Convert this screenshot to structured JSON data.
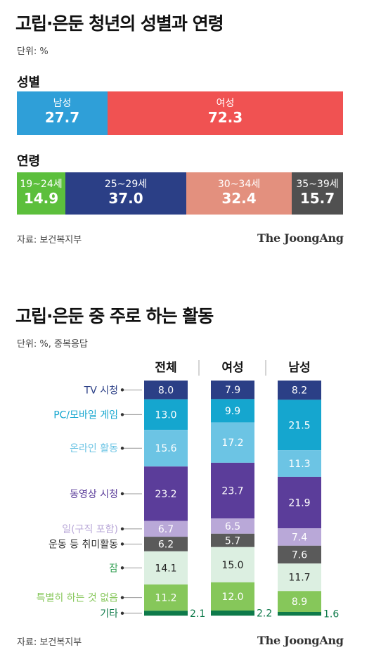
{
  "section1": {
    "title": "고립·은둔 청년의 성별과 연령",
    "unit": "단위: %",
    "gender_label": "성별",
    "age_label": "연령",
    "source": "자료: 보건복지부",
    "brand": "The JoongAng"
  },
  "section2": {
    "title": "고립·은둔 중 주로 하는 활동",
    "unit": "단위: %, 중복응답",
    "source": "자료: 보건복지부",
    "brand": "The JoongAng"
  },
  "colors": {
    "male": "#2f9fd8",
    "female": "#f05252",
    "age_19_24": "#5cbf3c",
    "age_25_29": "#2b3f86",
    "age_30_34": "#e3907e",
    "age_35_39": "#505050"
  },
  "chart_data": [
    {
      "type": "bar",
      "orientation": "horizontal-stacked",
      "name": "성별",
      "series": [
        {
          "name": "남성",
          "values": [
            27.7
          ],
          "color": "#2f9fd8"
        },
        {
          "name": "여성",
          "values": [
            72.3
          ],
          "color": "#f05252"
        }
      ]
    },
    {
      "type": "bar",
      "orientation": "horizontal-stacked",
      "name": "연령",
      "series": [
        {
          "name": "19~24세",
          "values": [
            14.9
          ],
          "color": "#5cbf3c"
        },
        {
          "name": "25~29세",
          "values": [
            37.0
          ],
          "color": "#2b3f86"
        },
        {
          "name": "30~34세",
          "values": [
            32.4
          ],
          "color": "#e3907e"
        },
        {
          "name": "35~39세",
          "values": [
            15.7
          ],
          "color": "#505050"
        }
      ]
    },
    {
      "type": "bar",
      "orientation": "vertical-stacked",
      "categories": [
        "전체",
        "여성",
        "남성"
      ],
      "series": [
        {
          "name": "TV 시청",
          "values": [
            8.0,
            7.9,
            8.2
          ],
          "color": "#2b3f86"
        },
        {
          "name": "PC/모바일 게임",
          "values": [
            13.0,
            9.9,
            21.5
          ],
          "color": "#15a6cf"
        },
        {
          "name": "온라인 활동",
          "values": [
            15.6,
            17.2,
            11.3
          ],
          "color": "#6cc4e4"
        },
        {
          "name": "동영상 시청",
          "values": [
            23.2,
            23.7,
            21.9
          ],
          "color": "#5b3d9a"
        },
        {
          "name": "일(구직 포함)",
          "values": [
            6.7,
            6.5,
            7.4
          ],
          "color": "#b9a8d8"
        },
        {
          "name": "운동 등 취미활동",
          "values": [
            6.2,
            5.7,
            7.6
          ],
          "color": "#5a5a5a"
        },
        {
          "name": "잠",
          "values": [
            14.1,
            15.0,
            11.7
          ],
          "color": "#dcefe1"
        },
        {
          "name": "특별히 하는 것 없음",
          "values": [
            11.2,
            12.0,
            8.9
          ],
          "color": "#86c75a"
        },
        {
          "name": "기타",
          "values": [
            2.1,
            2.2,
            1.6
          ],
          "color": "#0e7a4a"
        }
      ]
    }
  ]
}
